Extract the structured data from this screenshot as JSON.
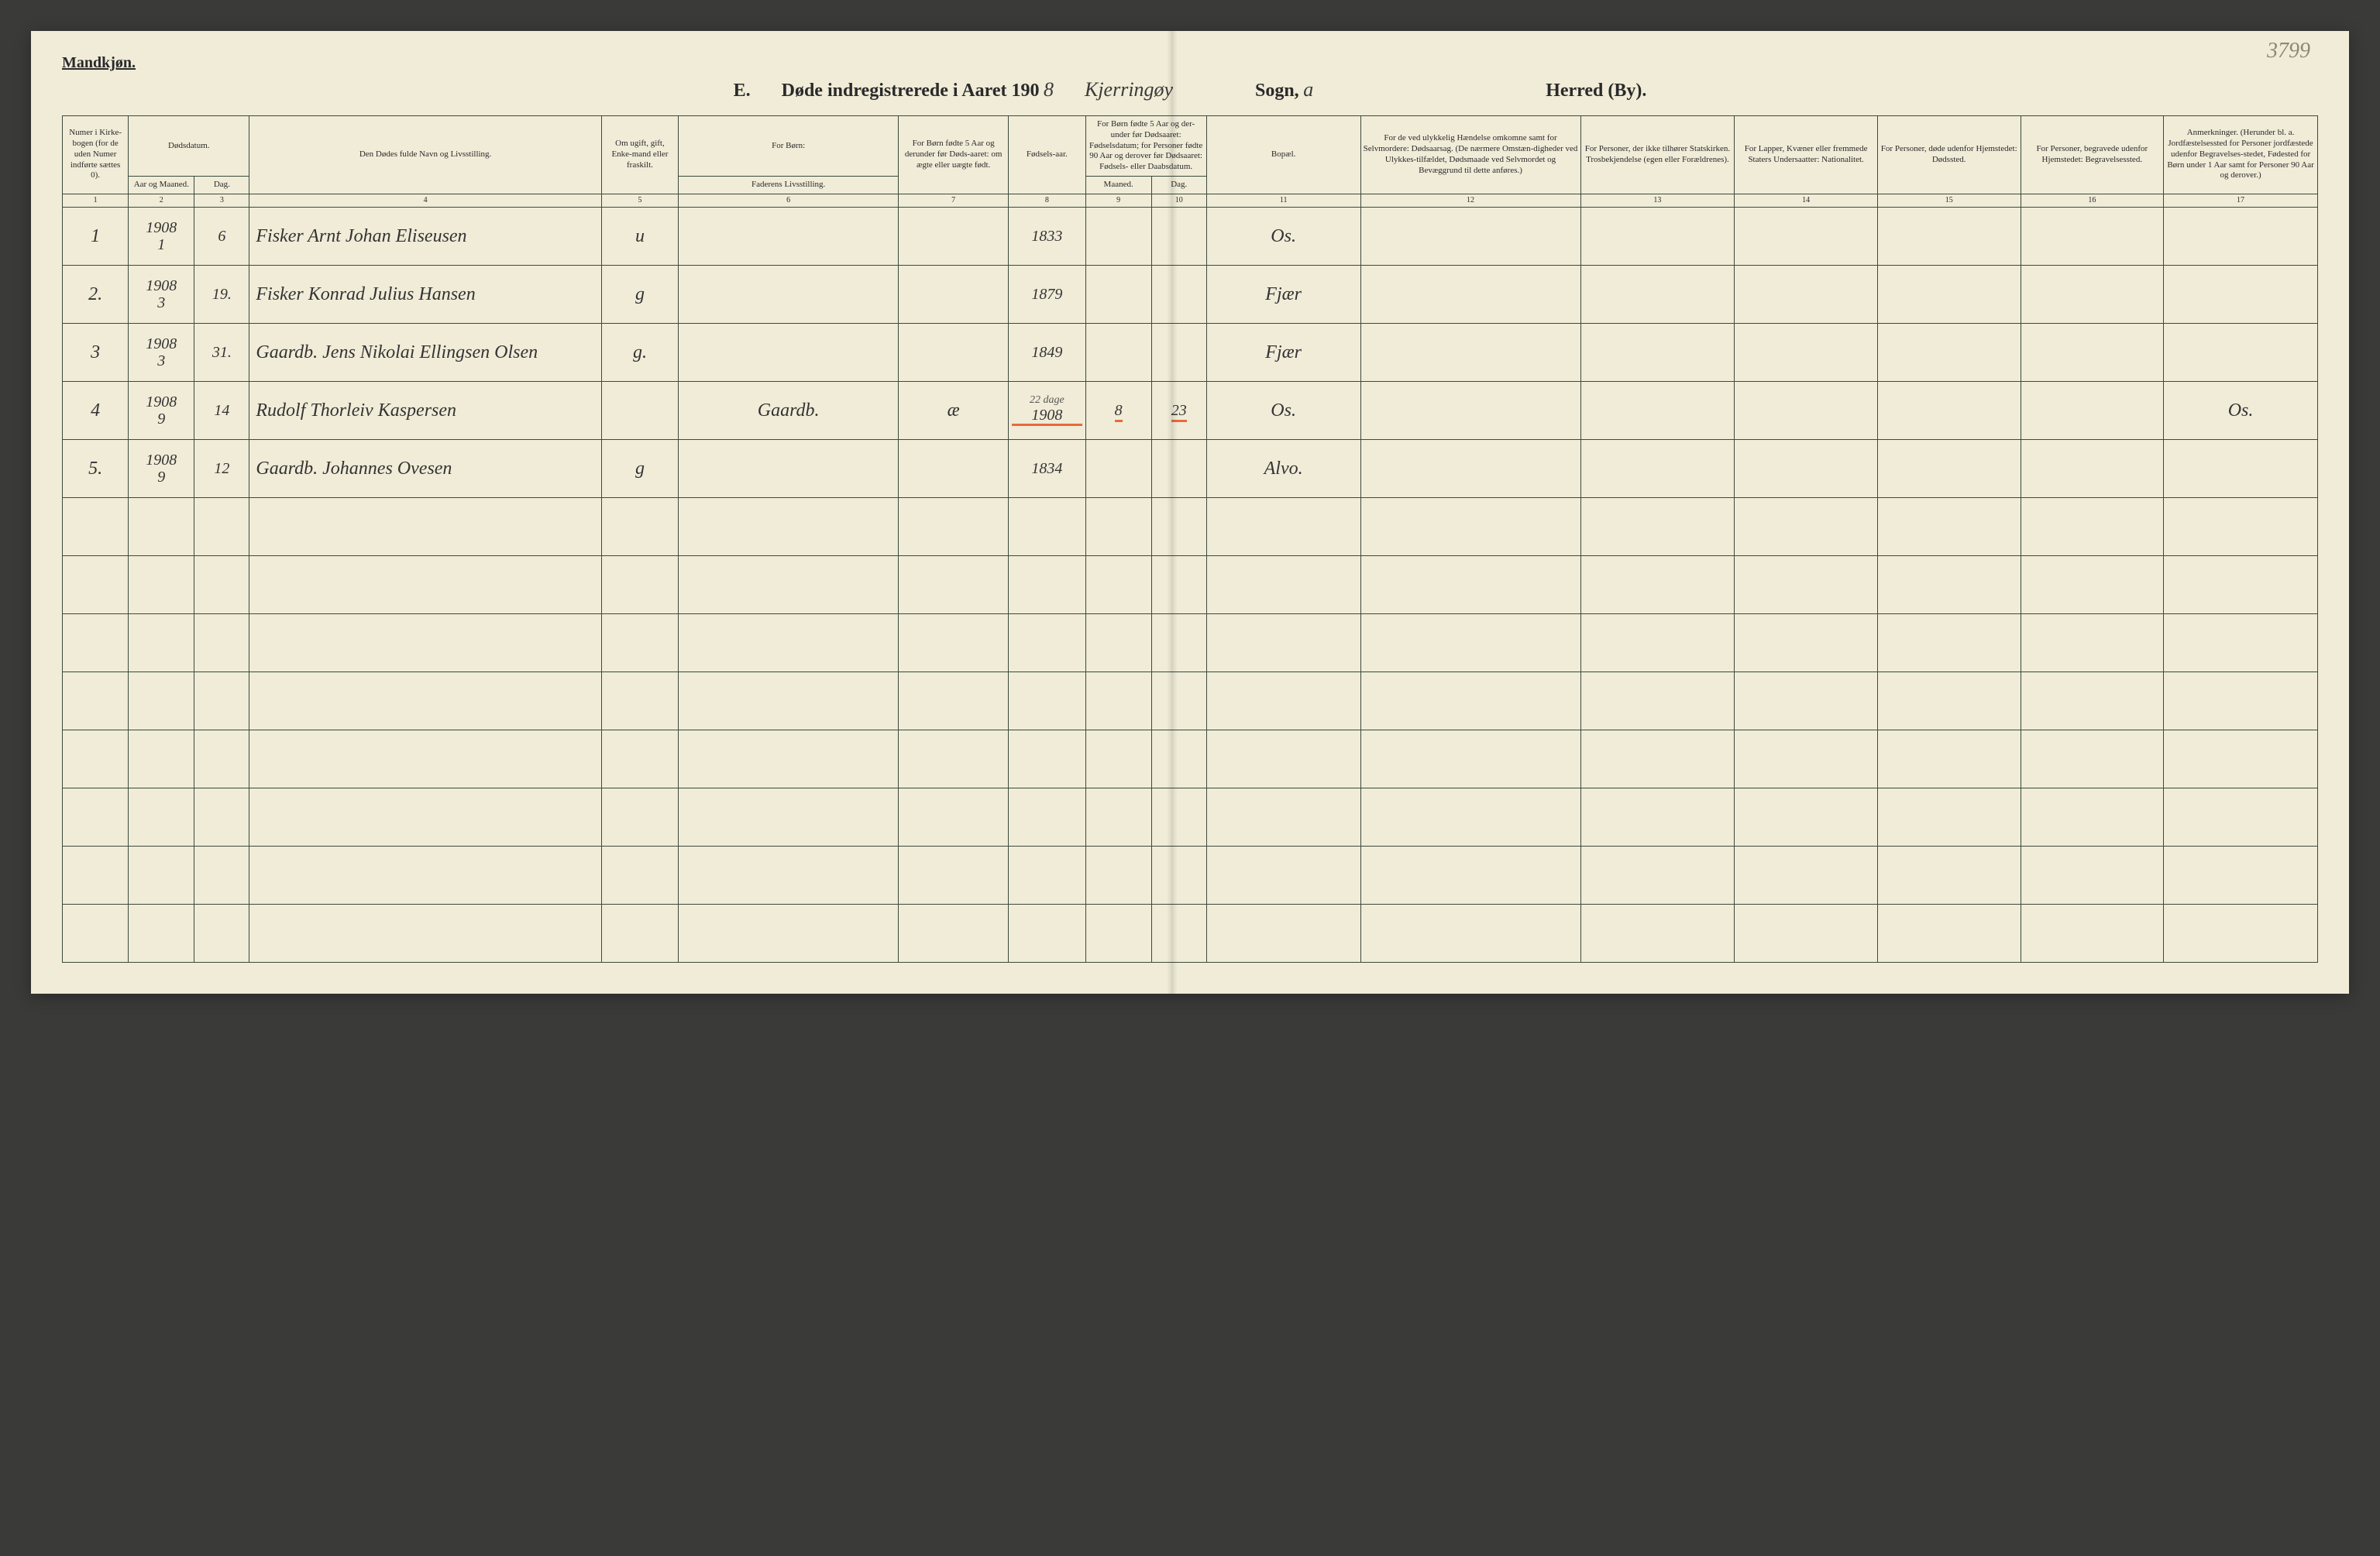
{
  "page_number_handwritten": "3799",
  "gender_heading": "Mandkjøn.",
  "title": {
    "section_letter": "E.",
    "printed_1": "Døde indregistrerede i Aaret 190",
    "year_digit": "8",
    "parish_handwritten": "Kjerringøy",
    "sogn_label": "Sogn,",
    "sogn_handwritten": "a",
    "herred_label": "Herred (By)."
  },
  "columns": {
    "c1": "Numer i Kirke-bogen (for de uden Numer indførte sættes 0).",
    "c2_group": "Dødsdatum.",
    "c2": "Aar og Maaned.",
    "c3": "Dag.",
    "c4": "Den Dødes fulde Navn og Livsstilling.",
    "c5": "Om ugift, gift, Enke-mand eller fraskilt.",
    "c6_group": "For Børn:",
    "c6": "Faderens Livsstilling.",
    "c7": "For Børn fødte 5 Aar og derunder før Døds-aaret: om ægte eller uægte født.",
    "c8": "Fødsels-aar.",
    "c9_10_group": "For Børn fødte 5 Aar og der-under før Dødsaaret: Fødselsdatum; for Personer fødte 90 Aar og derover før Dødsaaret: Fødsels- eller Daabsdatum.",
    "c9": "Maaned.",
    "c10": "Dag.",
    "c11": "Bopæl.",
    "c12": "For de ved ulykkelig Hændelse omkomne samt for Selvmordere: Dødsaarsag. (De nærmere Omstæn-digheder ved Ulykkes-tilfældet, Dødsmaade ved Selvmordet og Bevæggrund til dette anføres.)",
    "c13": "For Personer, der ikke tilhører Statskirken. Trosbekjendelse (egen eller Forældrenes).",
    "c14": "For Lapper, Kvæner eller fremmede Staters Undersaatter: Nationalitet.",
    "c15": "For Personer, døde udenfor Hjemstedet: Dødssted.",
    "c16": "For Personer, begravede udenfor Hjemstedet: Begravelsessted.",
    "c17": "Anmerkninger. (Herunder bl. a. Jordfæstelsessted for Personer jordfæstede udenfor Begravelses-stedet, Fødested for Børn under 1 Aar samt for Personer 90 Aar og derover.)"
  },
  "col_numbers": [
    "1",
    "2",
    "3",
    "4",
    "5",
    "6",
    "7",
    "8",
    "9",
    "10",
    "11",
    "12",
    "13",
    "14",
    "15",
    "16",
    "17"
  ],
  "rows": [
    {
      "n": "1",
      "year": "1908",
      "month": "1",
      "day": "6",
      "name": "Fisker Arnt Johan Eliseusen",
      "marital": "u",
      "father": "",
      "legit": "",
      "birth_year": "1833",
      "bm": "",
      "bd": "",
      "residence": "Os.",
      "cause": "",
      "faith": "",
      "nat": "",
      "deathplace": "",
      "burial": "",
      "remark": ""
    },
    {
      "n": "2.",
      "year": "1908",
      "month": "3",
      "day": "19.",
      "name": "Fisker Konrad Julius Hansen",
      "marital": "g",
      "father": "",
      "legit": "",
      "birth_year": "1879",
      "bm": "",
      "bd": "",
      "residence": "Fjær",
      "cause": "",
      "faith": "",
      "nat": "",
      "deathplace": "",
      "burial": "",
      "remark": ""
    },
    {
      "n": "3",
      "year": "1908",
      "month": "3",
      "day": "31.",
      "name": "Gaardb. Jens Nikolai Ellingsen Olsen",
      "marital": "g.",
      "father": "",
      "legit": "",
      "birth_year": "1849",
      "bm": "",
      "bd": "",
      "residence": "Fjær",
      "cause": "",
      "faith": "",
      "nat": "",
      "deathplace": "",
      "burial": "",
      "remark": ""
    },
    {
      "n": "4",
      "year": "1908",
      "month": "9",
      "day": "14",
      "name": "Rudolf Thorleiv Kaspersen",
      "marital": "",
      "father": "Gaardb.",
      "legit": "æ",
      "birth_year": "1908",
      "bm": "8",
      "bd": "23",
      "bd_annot": "22 dage",
      "residence": "Os.",
      "cause": "",
      "faith": "",
      "nat": "",
      "deathplace": "",
      "burial": "",
      "remark": "Os."
    },
    {
      "n": "5.",
      "year": "1908",
      "month": "9",
      "day": "12",
      "name": "Gaardb. Johannes Ovesen",
      "marital": "g",
      "father": "",
      "legit": "",
      "birth_year": "1834",
      "bm": "",
      "bd": "",
      "residence": "Alvo.",
      "cause": "",
      "faith": "",
      "nat": "",
      "deathplace": "",
      "burial": "",
      "remark": ""
    }
  ],
  "empty_row_count": 8,
  "style": {
    "paper_bg": "#f0ecd8",
    "rule_color": "#3b4a3b",
    "ink_color": "#333333",
    "red_underline": "#e86a3a",
    "header_font_size_pt": 11,
    "body_font_size_pt": 20
  }
}
